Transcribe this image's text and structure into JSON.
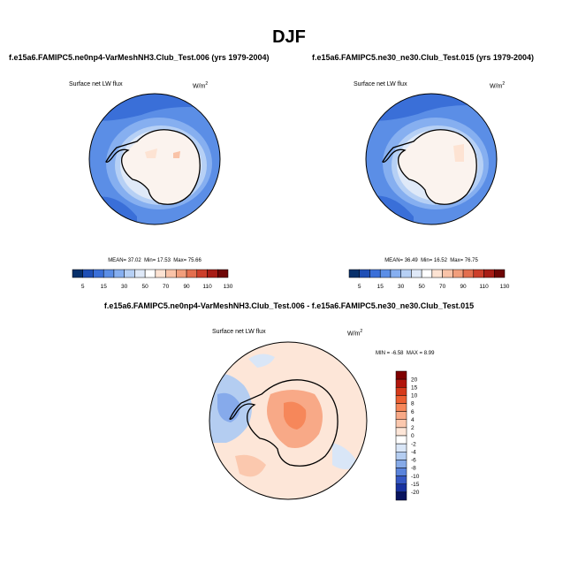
{
  "figure": {
    "season": "DJF"
  },
  "panels": [
    {
      "title": "f.e15a6.FAMIPC5.ne0np4-VarMeshNH3.Club_Test.006 (yrs 1979-2004)",
      "variable": "Surface net LW flux",
      "units_base": "W/m",
      "units_exp": "2",
      "stats": {
        "mean_label": "MEAN=",
        "mean": "37.02",
        "min_label": "Min=",
        "min": "17.53",
        "max_label": "Max=",
        "max": "75.66"
      }
    },
    {
      "title": "f.e15a6.FAMIPC5.ne30_ne30.Club_Test.015 (yrs 1979-2004)",
      "variable": "Surface net LW flux",
      "units_base": "W/m",
      "units_exp": "2",
      "stats": {
        "mean_label": "MEAN=",
        "mean": "36.49",
        "min_label": "Min=",
        "min": "16.52",
        "max_label": "Max=",
        "max": "76.75"
      }
    }
  ],
  "diff": {
    "title": "f.e15a6.FAMIPC5.ne0np4-VarMeshNH3.Club_Test.006 - f.e15a6.FAMIPC5.ne30_ne30.Club_Test.015",
    "variable": "Surface net LW flux",
    "units_base": "W/m",
    "units_exp": "2",
    "stats": {
      "min_label": "MIN =",
      "min": "-6.58",
      "max_label": "MAX =",
      "max": "8.99"
    }
  },
  "chart_data": [
    {
      "type": "heatmap",
      "projection": "south-polar stereographic",
      "title": "f.e15a6.FAMIPC5.ne0np4-VarMeshNH3.Club_Test.006 (yrs 1979-2004)",
      "variable": "Surface net LW flux",
      "units": "W/m2",
      "colorbar_levels": [
        5,
        15,
        30,
        50,
        70,
        90,
        110,
        130
      ],
      "colorbar_colors": [
        "#08306b",
        "#1f4fb5",
        "#3a6fd8",
        "#5b8ee6",
        "#86aff0",
        "#b6d0f5",
        "#dfe9f8",
        "#ffffff",
        "#fde3d3",
        "#f9c3a8",
        "#f19e7c",
        "#e36f4f",
        "#cc3f2b",
        "#a71d16",
        "#6e0606"
      ],
      "mean": 37.02,
      "min": 17.53,
      "max": 75.66
    },
    {
      "type": "heatmap",
      "projection": "south-polar stereographic",
      "title": "f.e15a6.FAMIPC5.ne30_ne30.Club_Test.015 (yrs 1979-2004)",
      "variable": "Surface net LW flux",
      "units": "W/m2",
      "colorbar_levels": [
        5,
        15,
        30,
        50,
        70,
        90,
        110,
        130
      ],
      "colorbar_colors": [
        "#08306b",
        "#1f4fb5",
        "#3a6fd8",
        "#5b8ee6",
        "#86aff0",
        "#b6d0f5",
        "#dfe9f8",
        "#ffffff",
        "#fde3d3",
        "#f9c3a8",
        "#f19e7c",
        "#e36f4f",
        "#cc3f2b",
        "#a71d16",
        "#6e0606"
      ],
      "mean": 36.49,
      "min": 16.52,
      "max": 76.75
    },
    {
      "type": "heatmap",
      "projection": "south-polar stereographic",
      "title": "f.e15a6.FAMIPC5.ne0np4-VarMeshNH3.Club_Test.006 - f.e15a6.FAMIPC5.ne30_ne30.Club_Test.015",
      "variable": "Surface net LW flux",
      "units": "W/m2",
      "colorbar_levels": [
        20,
        15,
        10,
        8,
        6,
        4,
        2,
        0,
        -2,
        -4,
        -6,
        -8,
        -10,
        -15,
        -20
      ],
      "colorbar_colors": [
        "#7f0000",
        "#b1150c",
        "#d63a1b",
        "#ec5f32",
        "#f6875a",
        "#f8a987",
        "#fbc8ae",
        "#fde6d8",
        "#ffffff",
        "#d9e6f7",
        "#b4cdf1",
        "#86aae8",
        "#5a84dc",
        "#3558c4",
        "#1832a0",
        "#08145f"
      ],
      "min": -6.58,
      "max": 8.99
    }
  ]
}
